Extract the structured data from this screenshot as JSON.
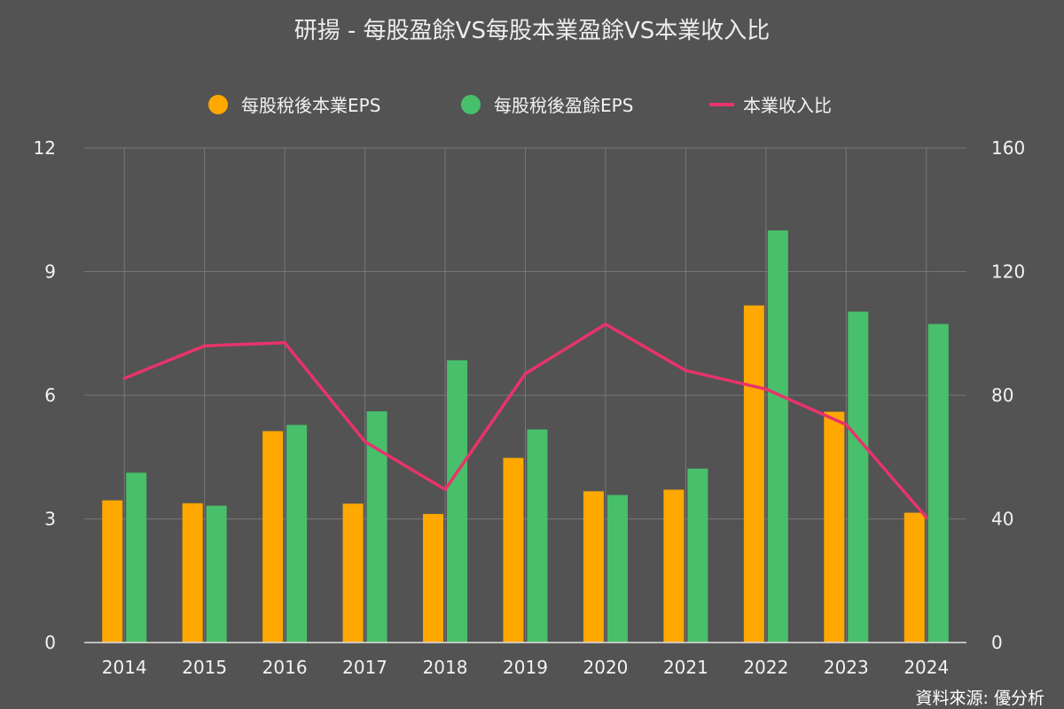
{
  "chart_data": {
    "type": "bar",
    "title": "研揚 - 每股盈餘VS每股本業盈餘VS本業收入比",
    "categories": [
      "2014",
      "2015",
      "2016",
      "2017",
      "2018",
      "2019",
      "2020",
      "2021",
      "2022",
      "2023",
      "2024"
    ],
    "series": [
      {
        "name": "每股稅後本業EPS",
        "type": "bar",
        "axis": "left",
        "color": "#FFA800",
        "values": [
          3.45,
          3.38,
          5.13,
          3.37,
          3.12,
          4.48,
          3.67,
          3.71,
          8.18,
          5.6,
          3.15
        ]
      },
      {
        "name": "每股稅後盈餘EPS",
        "type": "bar",
        "axis": "left",
        "color": "#48BF6B",
        "values": [
          4.12,
          3.32,
          5.28,
          5.61,
          6.85,
          5.17,
          3.58,
          4.22,
          10.0,
          8.03,
          7.73
        ]
      },
      {
        "name": "本業收入比",
        "type": "line",
        "axis": "right",
        "color": "#E8336B",
        "values": [
          85.5,
          96.0,
          97.0,
          65.0,
          49.5,
          87.0,
          103.0,
          88.0,
          82.0,
          70.5,
          40.5
        ]
      }
    ],
    "yleft": {
      "min": 0,
      "max": 12,
      "ticks": [
        0,
        3,
        6,
        9,
        12
      ]
    },
    "yright": {
      "min": 0,
      "max": 160,
      "ticks": [
        0,
        40,
        80,
        120,
        160
      ]
    },
    "grid": true,
    "legend_position": "top-center"
  },
  "source": "資料來源: 優分析",
  "colors": {
    "background": "#535353",
    "grid": "#777777",
    "text": "#F2F2F2",
    "axis": "#E0E0E0"
  }
}
